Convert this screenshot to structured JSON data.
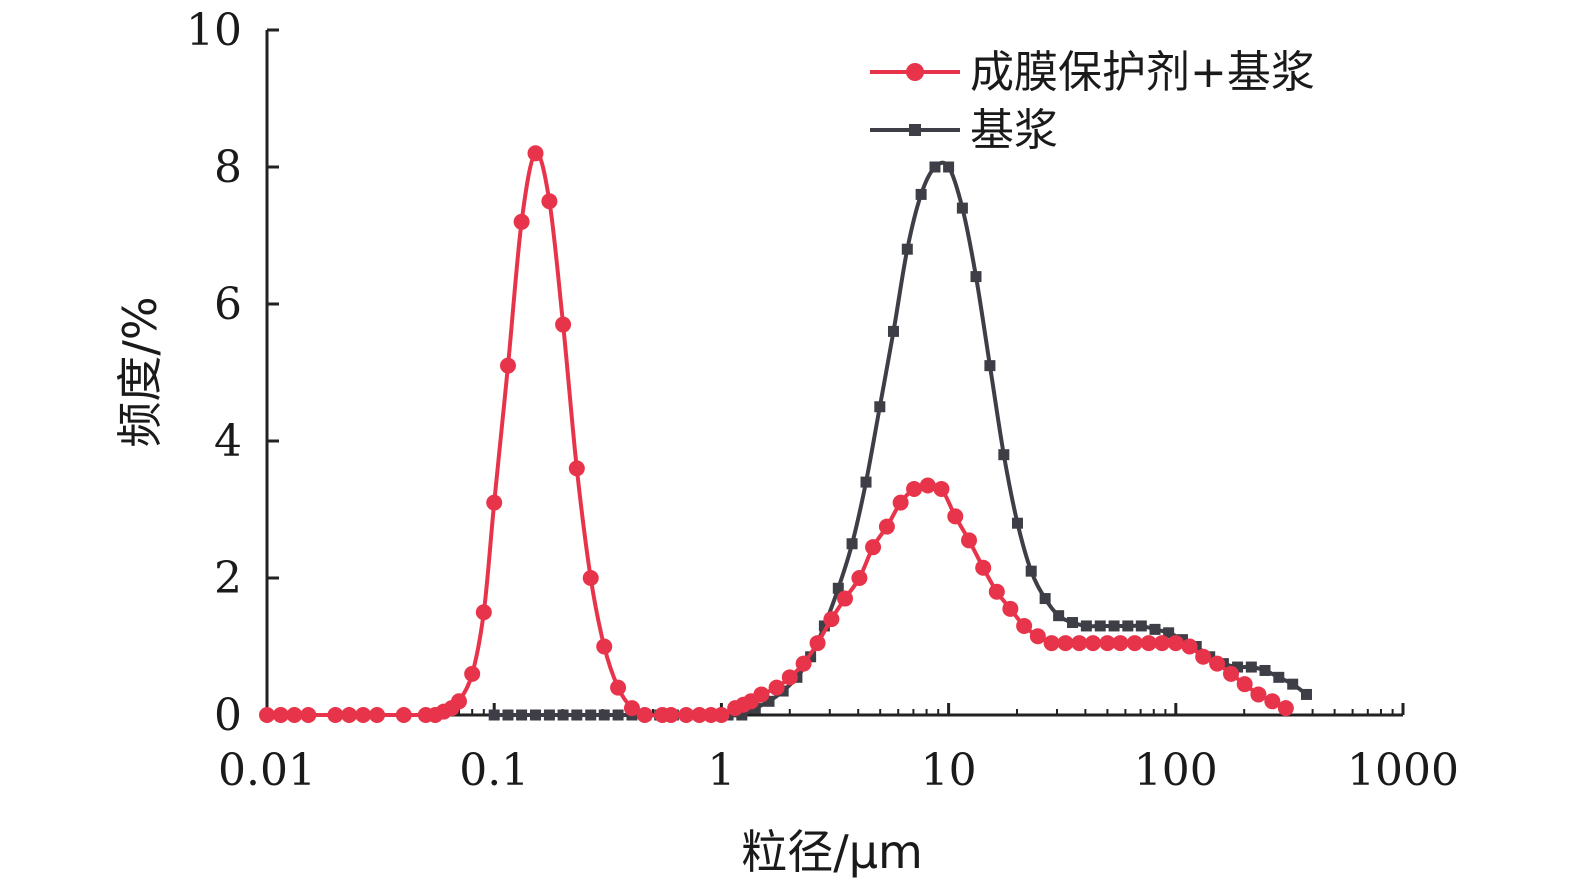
{
  "chart_data": {
    "type": "line",
    "xlabel": "粒径/μm",
    "ylabel": "频度/%",
    "xscale": "log",
    "xlim": [
      0.01,
      1000
    ],
    "ylim": [
      0,
      10
    ],
    "xticks": [
      0.01,
      0.1,
      1,
      10,
      100,
      1000
    ],
    "xtick_labels": [
      "0.01",
      "0.1",
      "1",
      "10",
      "100",
      "1000"
    ],
    "yticks": [
      0,
      2,
      4,
      6,
      8,
      10
    ],
    "ytick_labels": [
      "0",
      "2",
      "4",
      "6",
      "8",
      "10"
    ],
    "grid": false,
    "legend_position": "top-right",
    "series": [
      {
        "name": "成膜保护剂+基浆",
        "color": "#e8344a",
        "marker": "circle",
        "x": [
          0.01,
          0.0115,
          0.0132,
          0.0152,
          0.02,
          0.023,
          0.0265,
          0.0305,
          0.04,
          0.05,
          0.055,
          0.06,
          0.065,
          0.07,
          0.08,
          0.09,
          0.1,
          0.115,
          0.132,
          0.152,
          0.175,
          0.201,
          0.231,
          0.266,
          0.305,
          0.351,
          0.404,
          0.46,
          0.55,
          0.6,
          0.7,
          0.8,
          0.9,
          1.0,
          1.15,
          1.25,
          1.35,
          1.5,
          1.75,
          2.0,
          2.3,
          2.65,
          3.05,
          3.5,
          4.05,
          4.65,
          5.35,
          6.15,
          7.05,
          8.1,
          9.3,
          10.7,
          12.3,
          14.2,
          16.3,
          18.7,
          21.5,
          24.7,
          28.4,
          32.7,
          37.6,
          43.2,
          50,
          57,
          66,
          76,
          87,
          100,
          115,
          132,
          152,
          175,
          201,
          231,
          266,
          305
        ],
        "y": [
          0,
          0,
          0,
          0,
          0,
          0,
          0,
          0,
          0,
          0,
          0,
          0.05,
          0.1,
          0.2,
          0.6,
          1.5,
          3.1,
          5.1,
          7.2,
          8.2,
          7.5,
          5.7,
          3.6,
          2.0,
          1.0,
          0.4,
          0.1,
          0,
          0,
          0,
          0,
          0,
          0,
          0,
          0.1,
          0.15,
          0.2,
          0.3,
          0.4,
          0.55,
          0.75,
          1.05,
          1.4,
          1.7,
          2.0,
          2.45,
          2.75,
          3.1,
          3.3,
          3.35,
          3.3,
          2.9,
          2.55,
          2.15,
          1.8,
          1.55,
          1.3,
          1.15,
          1.05,
          1.05,
          1.05,
          1.05,
          1.05,
          1.05,
          1.05,
          1.05,
          1.05,
          1.05,
          1.0,
          0.85,
          0.75,
          0.6,
          0.45,
          0.3,
          0.2,
          0.1
        ]
      },
      {
        "name": "基浆",
        "color": "#3e3e46",
        "marker": "square",
        "x": [
          0.1,
          0.115,
          0.132,
          0.152,
          0.175,
          0.201,
          0.231,
          0.266,
          0.305,
          0.351,
          0.404,
          0.465,
          0.535,
          0.615,
          0.705,
          0.81,
          0.93,
          1.07,
          1.23,
          1.41,
          1.62,
          1.87,
          2.15,
          2.47,
          2.84,
          3.27,
          3.76,
          4.33,
          4.98,
          5.72,
          6.58,
          7.57,
          8.71,
          10.0,
          11.5,
          13.2,
          15.2,
          17.5,
          20.1,
          23.1,
          26.6,
          30.5,
          35.1,
          40.4,
          46.5,
          53.5,
          61.5,
          70.5,
          81.0,
          93.0,
          107,
          123,
          141,
          162,
          187,
          215,
          247,
          284,
          327,
          376
        ],
        "y": [
          0,
          0,
          0,
          0,
          0,
          0,
          0,
          0,
          0,
          0,
          0,
          0,
          0,
          0,
          0,
          0,
          0,
          0,
          0,
          0.1,
          0.2,
          0.35,
          0.55,
          0.85,
          1.3,
          1.85,
          2.5,
          3.4,
          4.5,
          5.6,
          6.8,
          7.6,
          8.0,
          8.0,
          7.4,
          6.4,
          5.1,
          3.8,
          2.8,
          2.1,
          1.7,
          1.45,
          1.35,
          1.3,
          1.3,
          1.3,
          1.3,
          1.3,
          1.25,
          1.2,
          1.1,
          1.0,
          0.85,
          0.75,
          0.7,
          0.7,
          0.65,
          0.55,
          0.45,
          0.3
        ]
      }
    ]
  }
}
